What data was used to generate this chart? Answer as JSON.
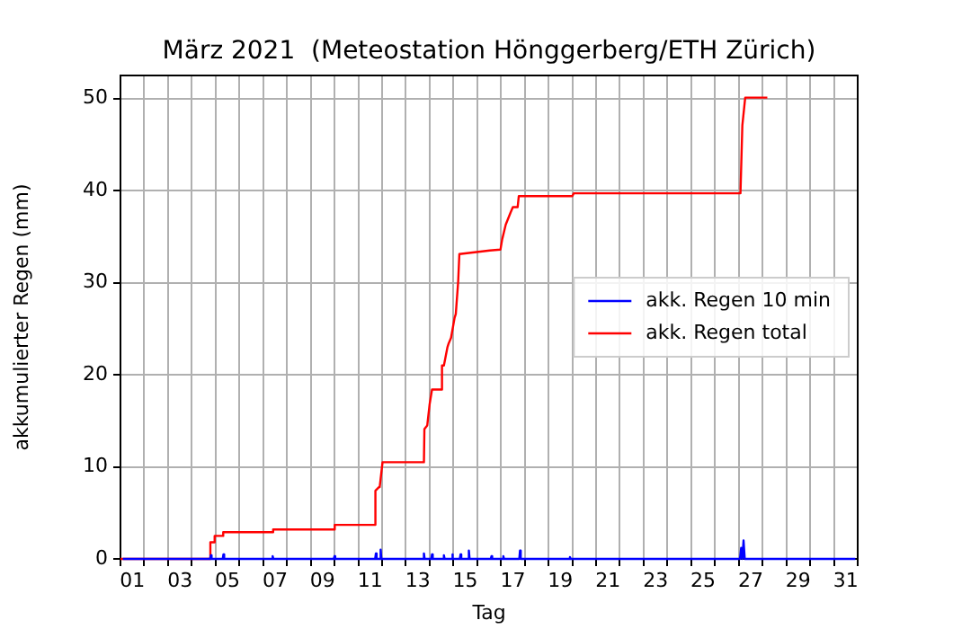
{
  "chart_data": {
    "type": "line",
    "title": "März 2021  (Meteostation Hönggerberg/ETH Zürich)",
    "xlabel": "Tag",
    "ylabel": "akkumulierter Regen (mm)",
    "xlim": [
      1,
      32
    ],
    "ylim": [
      0,
      52.5
    ],
    "xticks": [
      {
        "value": 1,
        "label": null
      },
      {
        "value": 1.5,
        "label": "01"
      },
      {
        "value": 2,
        "label": null
      },
      {
        "value": 3,
        "label": null
      },
      {
        "value": 3.5,
        "label": "03"
      },
      {
        "value": 4,
        "label": null
      },
      {
        "value": 5,
        "label": null
      },
      {
        "value": 5.5,
        "label": "05"
      },
      {
        "value": 6,
        "label": null
      },
      {
        "value": 7,
        "label": null
      },
      {
        "value": 7.5,
        "label": "07"
      },
      {
        "value": 8,
        "label": null
      },
      {
        "value": 9,
        "label": null
      },
      {
        "value": 9.5,
        "label": "09"
      },
      {
        "value": 10,
        "label": null
      },
      {
        "value": 11,
        "label": null
      },
      {
        "value": 11.5,
        "label": "11"
      },
      {
        "value": 12,
        "label": null
      },
      {
        "value": 13,
        "label": null
      },
      {
        "value": 13.5,
        "label": "13"
      },
      {
        "value": 14,
        "label": null
      },
      {
        "value": 15,
        "label": null
      },
      {
        "value": 15.5,
        "label": "15"
      },
      {
        "value": 16,
        "label": null
      },
      {
        "value": 17,
        "label": null
      },
      {
        "value": 17.5,
        "label": "17"
      },
      {
        "value": 18,
        "label": null
      },
      {
        "value": 19,
        "label": null
      },
      {
        "value": 19.5,
        "label": "19"
      },
      {
        "value": 20,
        "label": null
      },
      {
        "value": 21,
        "label": null
      },
      {
        "value": 21.5,
        "label": "21"
      },
      {
        "value": 22,
        "label": null
      },
      {
        "value": 23,
        "label": null
      },
      {
        "value": 23.5,
        "label": "23"
      },
      {
        "value": 24,
        "label": null
      },
      {
        "value": 25,
        "label": null
      },
      {
        "value": 25.5,
        "label": "25"
      },
      {
        "value": 26,
        "label": null
      },
      {
        "value": 27,
        "label": null
      },
      {
        "value": 27.5,
        "label": "27"
      },
      {
        "value": 28,
        "label": null
      },
      {
        "value": 29,
        "label": null
      },
      {
        "value": 29.5,
        "label": "29"
      },
      {
        "value": 30,
        "label": null
      },
      {
        "value": 31,
        "label": null
      },
      {
        "value": 31.5,
        "label": "31"
      },
      {
        "value": 32,
        "label": null
      }
    ],
    "yticks": [
      0,
      10,
      20,
      30,
      40,
      50
    ],
    "grid": true,
    "legend": "right",
    "marker": "none",
    "line_style": "solid",
    "series": [
      {
        "name": "akk. Regen 10 min",
        "color": "#0000ff",
        "x": [
          1.1,
          4.77,
          4.8,
          4.83,
          5.3,
          5.33,
          5.36,
          7.37,
          7.4,
          7.43,
          9.97,
          10.0,
          10.03,
          11.71,
          11.74,
          11.77,
          11.91,
          11.94,
          11.97,
          13.73,
          13.76,
          13.79,
          14.07,
          14.1,
          14.13,
          14.57,
          14.6,
          14.63,
          14.92,
          14.95,
          14.98,
          15.27,
          15.3,
          15.33,
          15.62,
          15.65,
          15.68,
          16.57,
          16.6,
          16.63,
          17.07,
          17.1,
          17.13,
          17.77,
          17.8,
          17.83,
          19.87,
          19.9,
          19.93,
          27.05,
          27.1,
          27.15,
          27.2,
          27.25,
          31.9
        ],
        "values": [
          0,
          0,
          0.4,
          0,
          0,
          0.5,
          0,
          0,
          0.3,
          0,
          0,
          0.3,
          0,
          0,
          0.6,
          0,
          0,
          1.0,
          0,
          0,
          0.6,
          0,
          0,
          0.5,
          0,
          0,
          0.4,
          0,
          0,
          0.5,
          0,
          0,
          0.5,
          0,
          0,
          0.9,
          0,
          0,
          0.3,
          0,
          0,
          0.3,
          0,
          0,
          0.9,
          0,
          0,
          0.2,
          0,
          0,
          1.2,
          0,
          2.0,
          0,
          0
        ]
      },
      {
        "name": "akk. Regen total",
        "color": "#ff0000",
        "x": [
          1,
          4.76,
          4.78,
          4.95,
          4.96,
          5.31,
          5.32,
          7.41,
          7.42,
          10.0,
          10.01,
          11.69,
          11.72,
          11.87,
          11.9,
          12.02,
          13.76,
          13.78,
          13.9,
          14.0,
          14.1,
          14.3,
          14.5,
          14.52,
          14.6,
          14.75,
          14.8,
          14.9,
          15.05,
          15.1,
          15.2,
          15.25,
          16.53,
          16.98,
          17.05,
          17.2,
          17.4,
          17.5,
          17.7,
          17.75,
          20.0,
          20.06,
          27.07,
          27.15,
          27.27,
          28.2
        ],
        "values": [
          0,
          0,
          1.8,
          1.8,
          2.5,
          2.5,
          2.9,
          2.9,
          3.2,
          3.2,
          3.7,
          3.7,
          7.4,
          7.8,
          7.8,
          10.5,
          10.5,
          14.1,
          14.5,
          16.8,
          18.4,
          18.4,
          18.4,
          21.0,
          21.0,
          23.0,
          23.4,
          24.0,
          26.2,
          26.6,
          30.1,
          33.1,
          33.5,
          33.6,
          34.7,
          36.3,
          37.6,
          38.2,
          38.2,
          39.4,
          39.4,
          39.7,
          39.7,
          47.1,
          50.1,
          50.1
        ]
      }
    ]
  }
}
